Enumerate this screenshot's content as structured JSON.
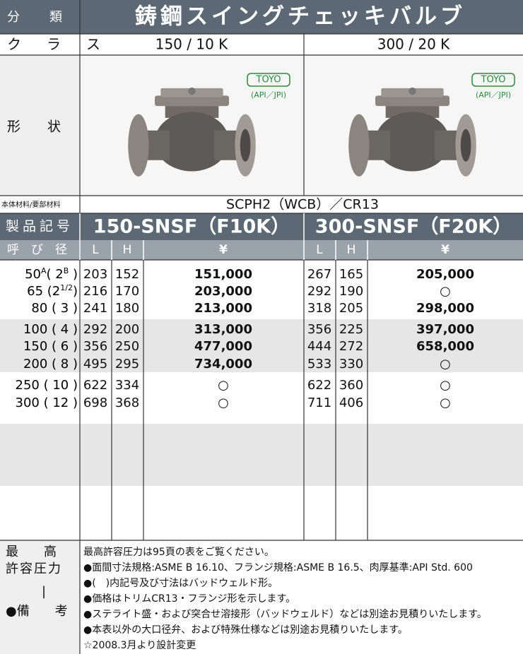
{
  "header": {
    "label": "分　類",
    "title": "鋳鋼スイングチェッキバルブ"
  },
  "class_row": {
    "label": "ク　ラ　ス",
    "values": [
      "150 / 10 K",
      "300 / 20 K"
    ]
  },
  "shape_row": {
    "label": "形　　状",
    "logo": "TOYO",
    "standard": "(API／JPI)"
  },
  "material_row": {
    "label": "本体材料/要部材料",
    "value": "SCPH2（WCB）／CR13"
  },
  "product_row": {
    "label": "製品記号",
    "codes": [
      "150-SNSF（F10K）",
      "300-SNSF（F20K）"
    ]
  },
  "column_header": {
    "size": "呼　び　径",
    "l": "L",
    "h": "H",
    "price": "¥"
  },
  "rows": [
    {
      "size": [
        {
          "t": "50"
        },
        {
          "t": "A",
          "sup": true
        },
        {
          "t": "(  2"
        },
        {
          "t": "B",
          "sup": true
        },
        {
          "t": " )"
        }
      ],
      "l1": "203",
      "h1": "152",
      "p1": "151,000",
      "l2": "267",
      "h2": "165",
      "p2": "205,000"
    },
    {
      "size": [
        {
          "t": "65 (2"
        },
        {
          "t": "1/2",
          "sup": true
        },
        {
          "t": ")"
        }
      ],
      "l1": "216",
      "h1": "170",
      "p1": "203,000",
      "l2": "292",
      "h2": "190",
      "p2": "○"
    },
    {
      "size": [
        {
          "t": "80 (  3  )"
        }
      ],
      "l1": "241",
      "h1": "180",
      "p1": "213,000",
      "l2": "318",
      "h2": "205",
      "p2": "298,000"
    },
    {
      "size": [
        {
          "t": "100 (  4  )"
        }
      ],
      "l1": "292",
      "h1": "200",
      "p1": "313,000",
      "l2": "356",
      "h2": "225",
      "p2": "397,000"
    },
    {
      "size": [
        {
          "t": "150 (  6  )"
        }
      ],
      "l1": "356",
      "h1": "250",
      "p1": "477,000",
      "l2": "444",
      "h2": "272",
      "p2": "658,000"
    },
    {
      "size": [
        {
          "t": "200 (  8  )"
        }
      ],
      "l1": "495",
      "h1": "295",
      "p1": "734,000",
      "l2": "533",
      "h2": "330",
      "p2": "○"
    },
    {
      "size": [
        {
          "t": "250 ( 10 )"
        }
      ],
      "l1": "622",
      "h1": "334",
      "p1": "○",
      "l2": "622",
      "h2": "360",
      "p2": "○"
    },
    {
      "size": [
        {
          "t": "300 ( 12 )"
        }
      ],
      "l1": "698",
      "h1": "368",
      "p1": "○",
      "l2": "711",
      "h2": "406",
      "p2": "○"
    }
  ],
  "notes": {
    "label": [
      "最　　高",
      "許容圧力",
      "|",
      "●備　　考"
    ],
    "lines": [
      "最高許容圧力は95頁の表をご覧ください。",
      "●面間寸法規格:ASME B 16.10、フランジ規格:ASME B 16.5、肉厚基準:API Std. 600",
      "●(　)内記号及び寸法はバッドウェルド形。",
      "●価格はトリムCR13・フランジ形を示します。",
      "●ステライト盛・および突合せ溶接形（バッドウェルド）などは別途お見積りいたします。",
      "●本表以外の大口径弁、および特殊仕様などは別途お見積りいたします。",
      "☆2008.3月より設計変更"
    ]
  }
}
